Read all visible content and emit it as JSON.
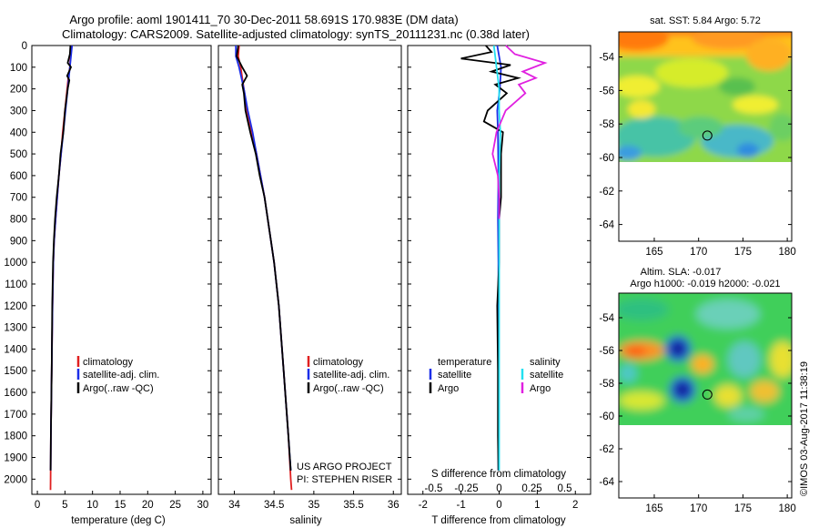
{
  "title": {
    "line1": "Argo profile: aoml 1901411_70 30-Dec-2011 58.691S 170.983E (DM data)",
    "line2": "Climatology: CARS2009. Satellite-adjusted climatology: synTS_20111231.nc (0.38d later)"
  },
  "credit": "©IMOS 03-Aug-2017 11:38:19",
  "colors": {
    "climatology": "#e02020",
    "satellite": "#1c2ee8",
    "argo": "#000000",
    "salinity_satellite": "#22e0f0",
    "salinity_argo": "#e020e0"
  },
  "chart_data": [
    {
      "type": "line",
      "xlabel": "temperature (deg C)",
      "ylabel": "",
      "xlim": [
        -1,
        31.5
      ],
      "ylim": [
        2070,
        0
      ],
      "xticks": [
        0,
        5,
        10,
        15,
        20,
        25,
        30
      ],
      "yticks": [
        0,
        100,
        200,
        300,
        400,
        500,
        600,
        700,
        800,
        900,
        1000,
        1100,
        1200,
        1300,
        1400,
        1500,
        1600,
        1700,
        1800,
        1900,
        2000
      ],
      "legend": {
        "placement": "lower-middle",
        "entries": [
          "climatology",
          "satellite-adj. clim.",
          "Argo(..raw -QC)"
        ]
      },
      "series": [
        {
          "name": "climatology",
          "color": "#e02020",
          "depth": [
            0,
            50,
            100,
            150,
            200,
            300,
            400,
            500,
            600,
            700,
            800,
            900,
            1000,
            1200,
            1500,
            1800,
            2000,
            2050
          ],
          "values": [
            6.1,
            6.0,
            5.9,
            5.6,
            5.4,
            5.0,
            4.6,
            4.3,
            3.9,
            3.6,
            3.3,
            3.05,
            2.9,
            2.75,
            2.6,
            2.45,
            2.4,
            2.38
          ]
        },
        {
          "name": "satellite-adj. clim.",
          "color": "#1c2ee8",
          "depth": [
            0,
            50,
            100,
            150,
            200,
            300,
            400,
            500,
            600,
            700,
            800,
            900,
            1000,
            1200,
            1500,
            1800,
            1960
          ],
          "values": [
            6.3,
            6.1,
            5.9,
            5.7,
            5.5,
            5.1,
            4.7,
            4.3,
            3.9,
            3.6,
            3.3,
            3.05,
            2.9,
            2.75,
            2.6,
            2.45,
            2.42
          ]
        },
        {
          "name": "Argo(..raw -QC)",
          "color": "#000000",
          "depth": [
            0,
            40,
            80,
            100,
            140,
            160,
            200,
            300,
            400,
            500,
            600,
            700,
            800,
            900,
            1000,
            1200,
            1500,
            1800,
            1960
          ],
          "values": [
            6.0,
            5.9,
            5.5,
            6.1,
            5.4,
            5.8,
            5.5,
            5.0,
            4.7,
            4.2,
            3.9,
            3.5,
            3.2,
            3.0,
            2.85,
            2.7,
            2.6,
            2.45,
            2.4
          ]
        }
      ]
    },
    {
      "type": "line",
      "xlabel": "salinity",
      "ylabel": "",
      "xlim": [
        33.8,
        36.1
      ],
      "ylim": [
        2070,
        0
      ],
      "xticks": [
        34,
        34.5,
        35,
        35.5,
        36
      ],
      "legend": {
        "placement": "lower-middle",
        "entries": [
          "climatology",
          "satellite-adj. clim.",
          "Argo(..raw -QC)"
        ]
      },
      "annotations": [
        "US ARGO PROJECT",
        "PI: STEPHEN RISER"
      ],
      "series": [
        {
          "name": "climatology",
          "color": "#e02020",
          "depth": [
            0,
            50,
            100,
            200,
            300,
            400,
            500,
            600,
            700,
            800,
            900,
            1000,
            1200,
            1500,
            1800,
            2000,
            2050
          ],
          "values": [
            34.06,
            34.05,
            34.08,
            34.12,
            34.16,
            34.22,
            34.28,
            34.33,
            34.38,
            34.42,
            34.46,
            34.5,
            34.56,
            34.62,
            34.68,
            34.71,
            34.72
          ]
        },
        {
          "name": "satellite-adj. clim.",
          "color": "#1c2ee8",
          "depth": [
            0,
            50,
            100,
            200,
            300,
            400,
            500,
            600,
            700,
            800,
            900,
            1000,
            1200,
            1500,
            1800,
            1960
          ],
          "values": [
            34.02,
            34.02,
            34.06,
            34.12,
            34.17,
            34.23,
            34.28,
            34.33,
            34.38,
            34.42,
            34.46,
            34.5,
            34.56,
            34.62,
            34.68,
            34.71
          ]
        },
        {
          "name": "Argo(..raw -QC)",
          "color": "#000000",
          "depth": [
            0,
            50,
            100,
            140,
            180,
            220,
            300,
            400,
            500,
            600,
            700,
            800,
            900,
            1000,
            1200,
            1500,
            1800,
            1960
          ],
          "values": [
            34.05,
            34.03,
            34.1,
            34.16,
            34.1,
            34.12,
            34.14,
            34.2,
            34.27,
            34.32,
            34.38,
            34.42,
            34.46,
            34.5,
            34.56,
            34.62,
            34.68,
            34.71
          ]
        }
      ]
    },
    {
      "type": "line",
      "xlabel": "T difference from climatology",
      "x2label": "S difference from climatology",
      "ylabel": "",
      "xlim": [
        -2.4,
        2.4
      ],
      "ylim": [
        2070,
        0
      ],
      "xticks": [
        -2,
        -1,
        0,
        1,
        2
      ],
      "x2ticks": [
        -0.5,
        -0.25,
        0,
        0.25,
        0.5
      ],
      "legend": {
        "placement": "lower-middle",
        "temperature_header": "temperature",
        "salinity_header": "salinity",
        "entries": [
          "satellite",
          "Argo",
          "satellite",
          "Argo"
        ]
      },
      "series": [
        {
          "name": "satellite",
          "group": "temperature",
          "color": "#1c2ee8",
          "depth": [
            0,
            100,
            200,
            300,
            400,
            600,
            800,
            1000,
            1200,
            1500,
            1800,
            1960
          ],
          "values": [
            -0.05,
            0.05,
            0.02,
            -0.05,
            -0.03,
            -0.02,
            -0.03,
            -0.02,
            -0.02,
            -0.02,
            -0.02,
            -0.02
          ]
        },
        {
          "name": "Argo",
          "group": "temperature",
          "color": "#000000",
          "depth": [
            0,
            30,
            60,
            90,
            120,
            150,
            180,
            220,
            260,
            300,
            350,
            400,
            500,
            600,
            700,
            800,
            1000,
            1200,
            1500,
            1800,
            1960
          ],
          "values": [
            -0.35,
            -0.2,
            -1.0,
            0.3,
            -0.2,
            0.5,
            -0.1,
            0.2,
            -0.05,
            -0.3,
            -0.4,
            0.1,
            0.05,
            0.05,
            0.05,
            0.0,
            0.0,
            -0.05,
            -0.03,
            -0.03,
            -0.02
          ]
        },
        {
          "name": "satellite",
          "group": "salinity",
          "color": "#22e0f0",
          "depth": [
            0,
            50,
            100,
            150,
            200,
            300,
            400,
            600,
            800,
            1000,
            1200,
            1500,
            1800,
            1960
          ],
          "values": [
            -0.04,
            -0.03,
            -0.02,
            -0.01,
            0.0,
            0.0,
            0.01,
            0.0,
            0.0,
            0.0,
            0.0,
            0.0,
            0.0,
            0.0
          ]
        },
        {
          "name": "Argo",
          "group": "salinity",
          "color": "#e020e0",
          "depth": [
            0,
            40,
            80,
            120,
            150,
            180,
            220,
            300,
            400,
            500,
            600,
            700,
            800
          ],
          "values": [
            0.05,
            0.12,
            0.35,
            0.18,
            0.28,
            0.15,
            0.2,
            0.05,
            -0.02,
            -0.05,
            -0.01,
            0.0,
            0.0
          ]
        }
      ]
    },
    {
      "type": "heatmap",
      "title": "sat. SST: 5.84 Argo: 5.72",
      "xlim": [
        161,
        180.5
      ],
      "ylim": [
        -65,
        -52.5
      ],
      "xticks": [
        165,
        170,
        175,
        180
      ],
      "yticks": [
        -54,
        -56,
        -58,
        -60,
        -62,
        -64
      ],
      "data_extent": {
        "lon": [
          161,
          180
        ],
        "lat": [
          -60,
          -52.5
        ]
      },
      "marker": {
        "lon": 170.983,
        "lat": -58.691
      }
    },
    {
      "type": "heatmap",
      "title": "Altim. SLA: -0.017",
      "subtitle": "Argo h1000: -0.019 h2000: -0.021",
      "xlim": [
        161,
        180.5
      ],
      "ylim": [
        -65,
        -52.5
      ],
      "xticks": [
        165,
        170,
        175,
        180
      ],
      "yticks": [
        -54,
        -56,
        -58,
        -60,
        -62,
        -64
      ],
      "data_extent": {
        "lon": [
          161,
          180
        ],
        "lat": [
          -60,
          -52.5
        ]
      },
      "marker": {
        "lon": 170.983,
        "lat": -58.691
      }
    }
  ]
}
